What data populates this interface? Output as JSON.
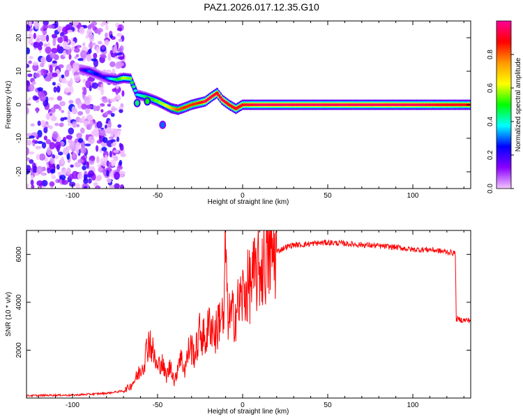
{
  "title": "PAZ1.2026.017.12.35.G10",
  "chart_data": [
    {
      "type": "heatmap",
      "title": "PAZ1.2026.017.12.35.G10",
      "xlabel": "Height of straight line (km)",
      "ylabel": "Frequency (Hz)",
      "xlim": [
        -127,
        134
      ],
      "ylim": [
        -25,
        25
      ],
      "x_ticks": [
        -100,
        -50,
        0,
        50,
        100
      ],
      "y_ticks": [
        -20,
        -10,
        0,
        10,
        20
      ],
      "colorbar": {
        "label": "Normalized spectral amplitude",
        "range": [
          0,
          1
        ],
        "ticks": [
          "0.0",
          "0.2",
          "0.4",
          "0.6",
          "0.8"
        ],
        "colormap": [
          "#f3c6ff",
          "#8a00ff",
          "#0000ff",
          "#00ffff",
          "#00ff00",
          "#ffff00",
          "#ff9900",
          "#ff0000",
          "#ff0099"
        ]
      },
      "ridge": {
        "x": [
          -95,
          -90,
          -86,
          -82,
          -78,
          -74,
          -70,
          -66,
          -62,
          -58,
          -54,
          -50,
          -46,
          -42,
          -38,
          -34,
          -30,
          -26,
          -22,
          -18,
          -15,
          -12,
          -8,
          -4,
          0,
          10,
          20,
          40,
          60,
          80,
          100,
          120,
          134
        ],
        "frequency": [
          10.5,
          10,
          9.2,
          8.3,
          7.8,
          7.5,
          8.0,
          7.8,
          3.0,
          2.5,
          1.8,
          1.0,
          0.0,
          -1.0,
          -1.5,
          -0.8,
          0.0,
          0.5,
          1.0,
          2.5,
          3.5,
          1.5,
          0.0,
          -1.2,
          0.0,
          0.0,
          0.0,
          0.0,
          0.0,
          0.0,
          0.0,
          0.0,
          0.0
        ],
        "amplitude": [
          0.15,
          0.3,
          0.25,
          0.2,
          0.35,
          0.45,
          0.6,
          0.55,
          0.35,
          0.45,
          0.5,
          0.55,
          0.6,
          0.7,
          0.8,
          0.85,
          0.85,
          0.85,
          0.95,
          0.95,
          0.9,
          0.95,
          0.9,
          0.9,
          0.9,
          0.95,
          0.95,
          0.95,
          0.95,
          0.95,
          0.95,
          0.9,
          0.9
        ]
      },
      "blobs": [
        {
          "x": -47,
          "frequency": -6,
          "amplitude": 0.3
        },
        {
          "x": -56,
          "frequency": 1.0,
          "amplitude": 0.5
        },
        {
          "x": -62,
          "frequency": 0.5,
          "amplitude": 0.45
        }
      ],
      "noise_region": {
        "x_range": [
          -127,
          -70
        ],
        "frequency_range": [
          -25,
          25
        ],
        "amplitude_range": [
          0.0,
          0.25
        ]
      }
    },
    {
      "type": "line",
      "xlabel": "Height of straight line (km)",
      "ylabel": "SNR (10 * v/v)",
      "xlim": [
        -127,
        134
      ],
      "ylim": [
        0,
        7000
      ],
      "x_ticks": [
        -100,
        -50,
        0,
        50,
        100
      ],
      "y_ticks": [
        2000,
        4000,
        6000
      ],
      "color": "#ff0000",
      "series": [
        {
          "x": [
            -127,
            -110,
            -100,
            -90,
            -80,
            -70,
            -66,
            -62,
            -58,
            -55,
            -53,
            -50,
            -48,
            -45,
            -42,
            -40,
            -37,
            -34,
            -31,
            -28,
            -25,
            -22,
            -19,
            -16,
            -13,
            -11,
            -10,
            -9,
            -7,
            -4,
            0,
            4,
            8,
            12,
            16,
            20,
            25,
            30,
            35,
            40,
            50,
            60,
            70,
            80,
            90,
            100,
            110,
            120,
            125,
            125.5,
            130,
            134
          ],
          "y": [
            100,
            120,
            120,
            160,
            200,
            300,
            500,
            900,
            1500,
            2500,
            2000,
            1200,
            1600,
            900,
            1400,
            600,
            1800,
            1200,
            2200,
            1800,
            2800,
            2400,
            3200,
            2600,
            3600,
            3000,
            6900,
            3600,
            3300,
            3600,
            4300,
            4700,
            5200,
            5600,
            5900,
            6100,
            6300,
            6400,
            6400,
            6450,
            6500,
            6450,
            6400,
            6350,
            6300,
            6200,
            6200,
            6100,
            6050,
            3300,
            3250,
            3250
          ]
        }
      ]
    }
  ]
}
